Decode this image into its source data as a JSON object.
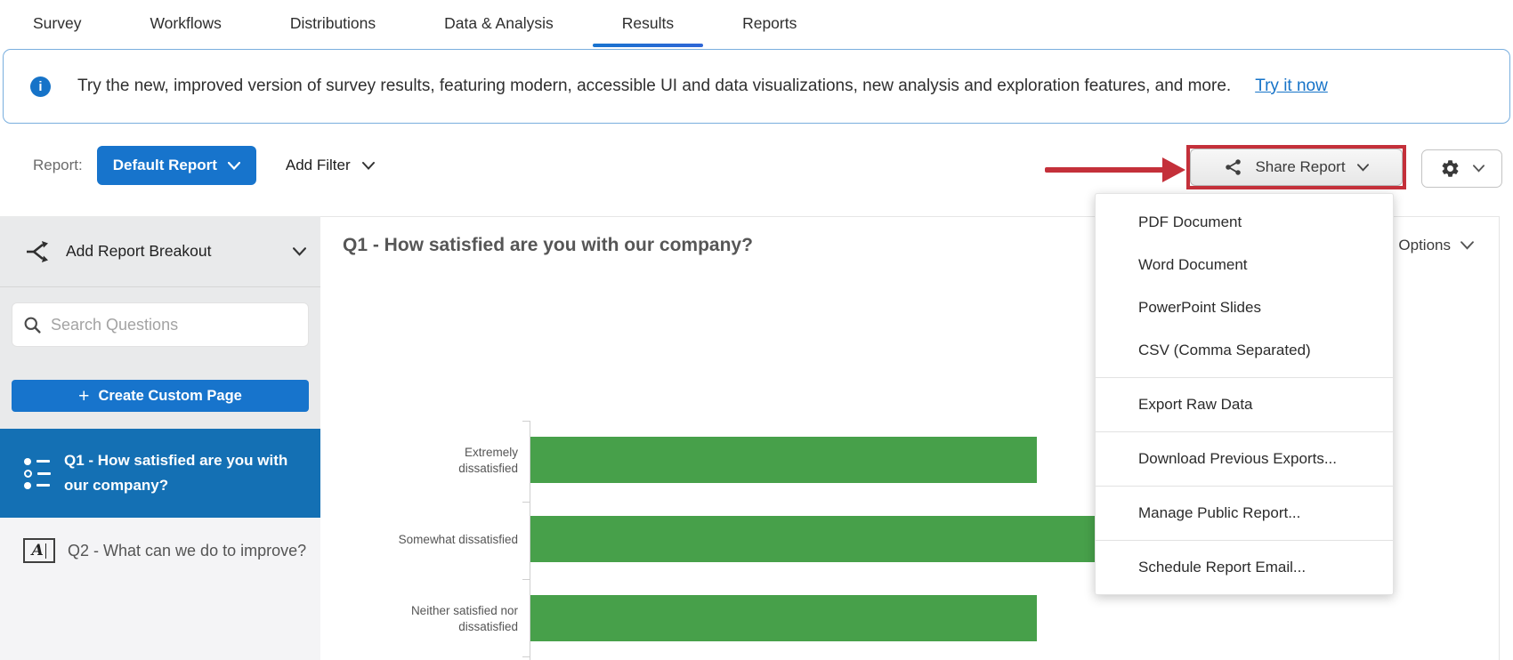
{
  "colors": {
    "accent_blue": "#1774cc",
    "selected_blue": "#1470b4",
    "link_blue": "#1673c8",
    "annotation_red": "#c4303a",
    "bar_green": "#47a04a",
    "sidebar_gray": "#e9eaeb",
    "list_gray": "#f4f4f6"
  },
  "nav": {
    "tabs": [
      "Survey",
      "Workflows",
      "Distributions",
      "Data & Analysis",
      "Results",
      "Reports"
    ],
    "active_tab": "Results"
  },
  "banner": {
    "text": "Try the new, improved version of survey results, featuring modern, accessible UI and data visualizations, new analysis and exploration features, and more.",
    "link_label": "Try it now"
  },
  "toolbar": {
    "report_label": "Report:",
    "report_selector_value": "Default Report",
    "add_filter_label": "Add Filter",
    "share_button_label": "Share Report"
  },
  "share_menu": {
    "groups": [
      {
        "items": [
          "PDF Document",
          "Word Document",
          "PowerPoint Slides",
          "CSV (Comma Separated)"
        ]
      },
      {
        "items": [
          "Export Raw Data"
        ]
      },
      {
        "items": [
          "Download Previous Exports..."
        ]
      },
      {
        "items": [
          "Manage Public Report..."
        ]
      },
      {
        "items": [
          "Schedule Report Email..."
        ]
      }
    ]
  },
  "sidebar": {
    "breakout_label": "Add Report Breakout",
    "search_placeholder": "Search Questions",
    "create_page_label": "Create Custom Page",
    "questions": [
      {
        "id": "Q1",
        "label": "Q1 - How satisfied are you with our company?",
        "type": "multiple-choice",
        "selected": true
      },
      {
        "id": "Q2",
        "label": "Q2 - What can we do to improve?",
        "type": "text-entry",
        "selected": false
      }
    ]
  },
  "chart_card": {
    "title": "Q1 - How satisfied are you with our company?",
    "options_label": "Options"
  },
  "chart_data": {
    "type": "bar",
    "orientation": "horizontal",
    "title": "Q1 - How satisfied are you with our company?",
    "categories": [
      "Extremely dissatisfied",
      "Somewhat dissatisfied",
      "Neither satisfied nor dissatisfied"
    ],
    "values": [
      2,
      3,
      2
    ],
    "value_note": "relative bar lengths estimated from pixels; numeric axis labels not visible (chart cut off at bottom, middle bar end covered by open menu)",
    "xlim": [
      0,
      3.2
    ],
    "bar_color": "#47a04a",
    "grid": false,
    "legend": false
  }
}
